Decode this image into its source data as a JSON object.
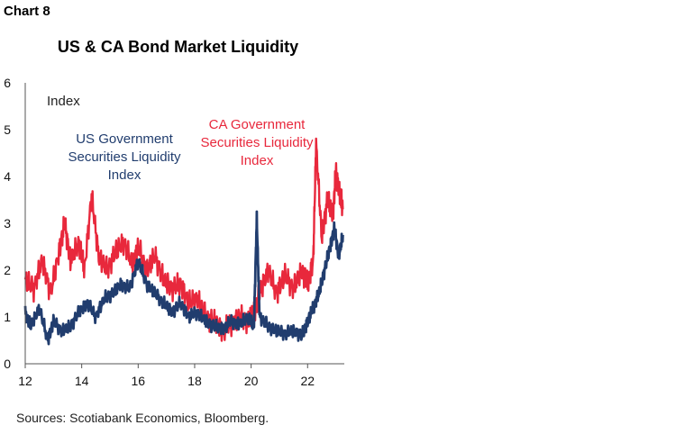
{
  "header": {
    "chart_number": "Chart 8",
    "title": "US & CA Bond Market Liquidity"
  },
  "footer": {
    "source": "Sources: Scotiabank Economics, Bloomberg."
  },
  "colors": {
    "us": "#213d6e",
    "ca": "#e8283c",
    "axis": "#555555"
  },
  "chart_data": {
    "type": "line",
    "title": "US & CA Bond Market Liquidity",
    "ylabel": "Index",
    "xlim": [
      2012.0,
      2023.3
    ],
    "ylim": [
      0,
      6
    ],
    "x_ticks": [
      12,
      14,
      16,
      18,
      20,
      22
    ],
    "x_tick_values": [
      2012,
      2014,
      2016,
      2018,
      2020,
      2022
    ],
    "y_ticks": [
      0,
      1,
      2,
      3,
      4,
      5,
      6
    ],
    "grid": false,
    "annotations": [
      {
        "lines": [
          "US Government",
          "Securities Liquidity",
          "Index"
        ],
        "series": "us"
      },
      {
        "lines": [
          "CA Government",
          "Securities Liquidity",
          "Index"
        ],
        "series": "ca"
      }
    ],
    "series": [
      {
        "name": "CA Government Securities Liquidity Index",
        "color": "#e8283c",
        "x": [
          2012.0,
          2012.3,
          2012.6,
          2012.9,
          2013.2,
          2013.4,
          2013.6,
          2013.9,
          2014.1,
          2014.35,
          2014.6,
          2014.9,
          2015.2,
          2015.5,
          2015.8,
          2016.0,
          2016.3,
          2016.6,
          2016.9,
          2017.2,
          2017.5,
          2017.8,
          2018.1,
          2018.4,
          2018.7,
          2019.0,
          2019.3,
          2019.6,
          2019.9,
          2020.1,
          2020.3,
          2020.6,
          2020.9,
          2021.2,
          2021.5,
          2021.8,
          2022.0,
          2022.2,
          2022.3,
          2022.5,
          2022.7,
          2022.9,
          2023.0,
          2023.15,
          2023.25
        ],
        "y": [
          1.8,
          1.6,
          2.2,
          1.5,
          2.4,
          3.0,
          2.2,
          2.6,
          2.0,
          3.6,
          2.3,
          2.0,
          2.4,
          2.6,
          2.1,
          2.5,
          2.0,
          2.3,
          1.8,
          1.6,
          1.7,
          1.3,
          1.4,
          1.0,
          0.9,
          0.7,
          0.85,
          1.0,
          0.9,
          1.1,
          1.5,
          2.0,
          1.5,
          1.9,
          1.6,
          2.0,
          1.7,
          2.2,
          4.7,
          2.7,
          3.5,
          3.2,
          4.1,
          3.6,
          3.3
        ]
      },
      {
        "name": "US Government Securities Liquidity Index",
        "color": "#213d6e",
        "x": [
          2012.0,
          2012.2,
          2012.5,
          2012.8,
          2013.0,
          2013.3,
          2013.6,
          2013.9,
          2014.2,
          2014.5,
          2014.8,
          2015.1,
          2015.4,
          2015.7,
          2016.0,
          2016.3,
          2016.6,
          2016.9,
          2017.2,
          2017.5,
          2017.8,
          2018.1,
          2018.4,
          2018.7,
          2019.0,
          2019.3,
          2019.6,
          2019.9,
          2020.1,
          2020.2,
          2020.3,
          2020.6,
          2020.9,
          2021.2,
          2021.5,
          2021.8,
          2022.0,
          2022.2,
          2022.4,
          2022.6,
          2022.8,
          2022.95,
          2023.1,
          2023.25
        ],
        "y": [
          1.1,
          0.8,
          1.2,
          0.5,
          0.9,
          0.7,
          0.8,
          1.1,
          1.3,
          1.0,
          1.4,
          1.5,
          1.7,
          1.6,
          2.2,
          1.7,
          1.5,
          1.3,
          1.1,
          1.3,
          1.0,
          1.1,
          0.9,
          0.8,
          0.75,
          0.9,
          0.85,
          1.0,
          0.8,
          3.1,
          1.0,
          0.8,
          0.7,
          0.65,
          0.7,
          0.6,
          0.9,
          1.2,
          1.5,
          2.0,
          2.5,
          2.9,
          2.3,
          2.75
        ]
      }
    ]
  }
}
